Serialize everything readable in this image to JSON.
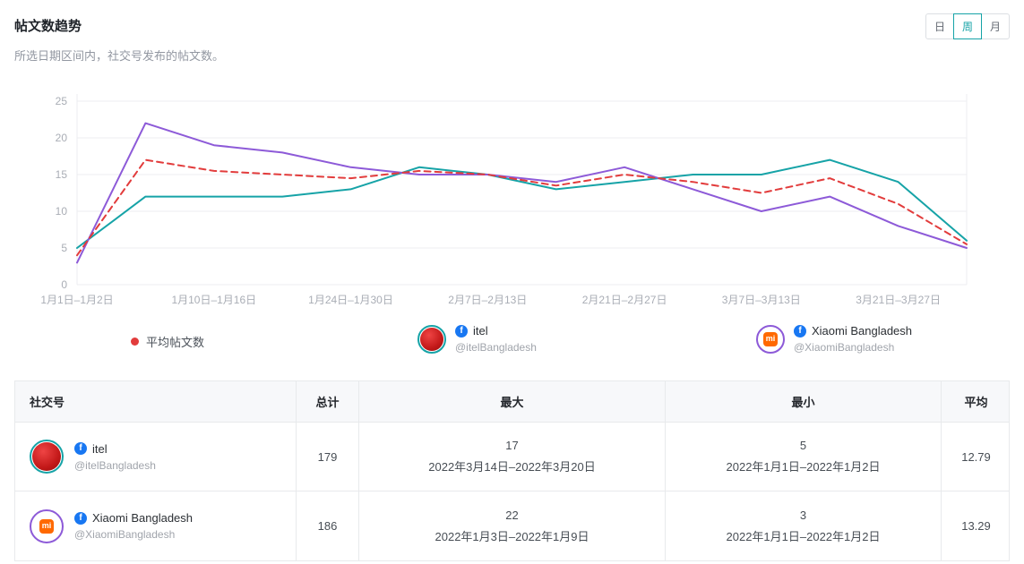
{
  "header": {
    "title": "帖文数趋势",
    "subtitle": "所选日期区间内，社交号发布的帖文数。",
    "granularity": [
      {
        "label": "日",
        "active": false
      },
      {
        "label": "周",
        "active": true
      },
      {
        "label": "月",
        "active": false
      }
    ],
    "accent_color": "#16a3a7"
  },
  "chart_data": {
    "type": "line",
    "title": "帖文数趋势",
    "num_points": 14,
    "x_labels": [
      "1月1日–1月2日",
      "1月10日–1月16日",
      "1月24日–1月30日",
      "2月7日–2月13日",
      "2月21日–2月27日",
      "3月7日–3月13日",
      "3月21日–3月27日"
    ],
    "x_label_indices": [
      0,
      2,
      4,
      6,
      8,
      10,
      12
    ],
    "ylim": [
      0,
      25
    ],
    "yticks": [
      0,
      5,
      10,
      15,
      20,
      25
    ],
    "grid": true,
    "legend_position": "bottom",
    "series": [
      {
        "name": "平均帖文数",
        "color": "#e23c3c",
        "dashed": true,
        "values": [
          4,
          17,
          15.5,
          15,
          14.5,
          15.5,
          15,
          13.5,
          15,
          14,
          12.5,
          14.5,
          11,
          5.5
        ]
      },
      {
        "name": "itel",
        "color": "#16a3a7",
        "dashed": false,
        "values": [
          5,
          12,
          12,
          12,
          13,
          16,
          15,
          13,
          14,
          15,
          15,
          17,
          14,
          6
        ]
      },
      {
        "name": "Xiaomi Bangladesh",
        "color": "#8d5ad8",
        "dashed": false,
        "values": [
          3,
          22,
          19,
          18,
          16,
          15,
          15,
          14,
          16,
          13,
          10,
          12,
          8,
          5
        ]
      }
    ]
  },
  "legend": {
    "average": {
      "label": "平均帖文数",
      "color": "#e23c3c"
    },
    "accounts": [
      {
        "name": "itel",
        "handle": "@itelBangladesh",
        "ring_color": "#16a3a7",
        "platform_icon": "f",
        "platform_color": "#1877f2"
      },
      {
        "name": "Xiaomi Bangladesh",
        "handle": "@XiaomiBangladesh",
        "ring_color": "#8d5ad8",
        "avatar_text": "mi",
        "avatar_color": "#ff6900",
        "platform_icon": "f",
        "platform_color": "#1877f2"
      }
    ]
  },
  "table": {
    "columns": [
      "社交号",
      "总计",
      "最大",
      "最小",
      "平均"
    ],
    "rows": [
      {
        "name": "itel",
        "handle": "@itelBangladesh",
        "total": "179",
        "max_value": "17",
        "max_range": "2022年3月14日–2022年3月20日",
        "min_value": "5",
        "min_range": "2022年1月1日–2022年1月2日",
        "avg": "12.79"
      },
      {
        "name": "Xiaomi Bangladesh",
        "handle": "@XiaomiBangladesh",
        "total": "186",
        "max_value": "22",
        "max_range": "2022年1月3日–2022年1月9日",
        "min_value": "3",
        "min_range": "2022年1月1日–2022年1月2日",
        "avg": "13.29"
      }
    ]
  }
}
